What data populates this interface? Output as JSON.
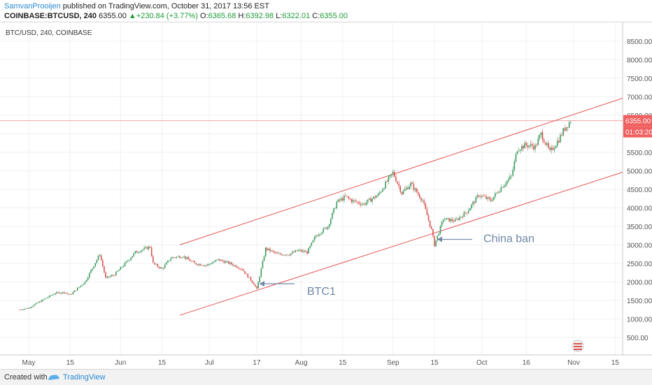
{
  "header": {
    "author": "SamvanProoijen",
    "published": " published on TradingView.com, October 31, 2017 13:56 EST",
    "symbol": "COINBASE:BTCUSD, 240",
    "last": "6355.00",
    "change": "+230.84 (+3.77%)",
    "o_label": "O:",
    "o": "6365.68",
    "h_label": "H:",
    "h": "6392.98",
    "l_label": "L:",
    "l": "6322.01",
    "c_label": "C:",
    "c": "6355.00"
  },
  "chart_data": {
    "type": "line",
    "title": "BTC/USD, 240, COINBASE",
    "xlabel": "",
    "ylabel": "",
    "ylim": [
      0,
      9000
    ],
    "grid": true,
    "x_ticks": [
      "May",
      "15",
      "Jun",
      "15",
      "Jul",
      "17",
      "Aug",
      "15",
      "Sep",
      "15",
      "Oct",
      "16",
      "Nov",
      "15"
    ],
    "x_tick_dates": [
      "2017-05-01",
      "2017-05-15",
      "2017-06-01",
      "2017-06-15",
      "2017-07-01",
      "2017-07-17",
      "2017-08-01",
      "2017-08-15",
      "2017-09-01",
      "2017-09-15",
      "2017-10-01",
      "2017-10-16",
      "2017-11-01",
      "2017-11-15"
    ],
    "y_ticks": [
      500,
      1000,
      1500,
      2000,
      2500,
      3000,
      3500,
      4000,
      4500,
      5000,
      5500,
      6000,
      6500,
      7000,
      7500,
      8000,
      8500
    ],
    "series": [
      {
        "values": [
          [
            "2017-04-28",
            1250
          ],
          [
            "2017-05-01",
            1300
          ],
          [
            "2017-05-05",
            1480
          ],
          [
            "2017-05-10",
            1700
          ],
          [
            "2017-05-13",
            1720
          ],
          [
            "2017-05-15",
            1650
          ],
          [
            "2017-05-20",
            2000
          ],
          [
            "2017-05-25",
            2750
          ],
          [
            "2017-05-27",
            2100
          ],
          [
            "2017-05-30",
            2200
          ],
          [
            "2017-06-02",
            2450
          ],
          [
            "2017-06-06",
            2800
          ],
          [
            "2017-06-11",
            2950
          ],
          [
            "2017-06-12",
            2500
          ],
          [
            "2017-06-15",
            2350
          ],
          [
            "2017-06-18",
            2650
          ],
          [
            "2017-06-22",
            2700
          ],
          [
            "2017-06-26",
            2500
          ],
          [
            "2017-06-30",
            2450
          ],
          [
            "2017-07-04",
            2600
          ],
          [
            "2017-07-08",
            2500
          ],
          [
            "2017-07-12",
            2350
          ],
          [
            "2017-07-16",
            1950
          ],
          [
            "2017-07-17",
            1800
          ],
          [
            "2017-07-20",
            2900
          ],
          [
            "2017-07-24",
            2750
          ],
          [
            "2017-07-28",
            2750
          ],
          [
            "2017-07-31",
            2850
          ],
          [
            "2017-08-03",
            2800
          ],
          [
            "2017-08-06",
            3250
          ],
          [
            "2017-08-10",
            3500
          ],
          [
            "2017-08-13",
            4150
          ],
          [
            "2017-08-16",
            4300
          ],
          [
            "2017-08-18",
            4200
          ],
          [
            "2017-08-22",
            4100
          ],
          [
            "2017-08-27",
            4350
          ],
          [
            "2017-09-01",
            4950
          ],
          [
            "2017-09-04",
            4400
          ],
          [
            "2017-09-07",
            4650
          ],
          [
            "2017-09-11",
            4200
          ],
          [
            "2017-09-14",
            3400
          ],
          [
            "2017-09-15",
            3000
          ],
          [
            "2017-09-18",
            3700
          ],
          [
            "2017-09-22",
            3650
          ],
          [
            "2017-09-26",
            3900
          ],
          [
            "2017-09-30",
            4350
          ],
          [
            "2017-10-04",
            4200
          ],
          [
            "2017-10-08",
            4600
          ],
          [
            "2017-10-11",
            4850
          ],
          [
            "2017-10-13",
            5600
          ],
          [
            "2017-10-16",
            5700
          ],
          [
            "2017-10-19",
            5650
          ],
          [
            "2017-10-21",
            6000
          ],
          [
            "2017-10-24",
            5500
          ],
          [
            "2017-10-27",
            5850
          ],
          [
            "2017-10-29",
            6150
          ],
          [
            "2017-10-31",
            6355
          ]
        ]
      }
    ],
    "trend_lines": [
      {
        "from": [
          "2017-06-21",
          3000
        ],
        "to": [
          "2017-11-19",
          7000
        ]
      },
      {
        "from": [
          "2017-06-21",
          1100
        ],
        "to": [
          "2017-11-19",
          5000
        ]
      }
    ],
    "price_line": 6355,
    "annotations": [
      {
        "text": "BTC1",
        "arrow_to": [
          "2017-07-17",
          1950
        ]
      },
      {
        "text": "China ban",
        "arrow_to": [
          "2017-09-15",
          3150
        ]
      }
    ],
    "price_label": "6355.00",
    "countdown": "01:03:20"
  },
  "footer": {
    "created": "Created with",
    "brand": "TradingView"
  },
  "colors": {
    "candle_up": "#3c9a5f",
    "candle_down": "#d9534f",
    "trend": "#e55353",
    "annotation": "#6f87a6",
    "price_tag": "#f06060"
  }
}
